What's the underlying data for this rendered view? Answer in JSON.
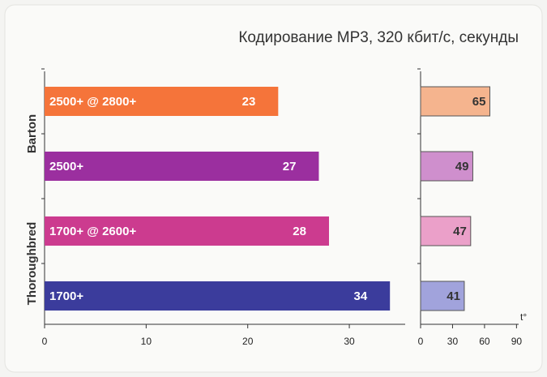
{
  "chart_data": [
    {
      "type": "bar",
      "title": "Кодирование MP3, 320 кбит/с, секунды",
      "group_labels": [
        "Barton",
        "Thoroughbred"
      ],
      "categories": [
        "2500+ @ 2800+",
        "2500+",
        "1700+ @ 2600+",
        "1700+"
      ],
      "values": [
        23,
        27,
        28,
        34
      ],
      "colors": [
        "#f5743a",
        "#9b2f9f",
        "#cc3b8f",
        "#3b3c9c"
      ],
      "xlim": [
        0,
        35.5
      ],
      "xticks": [
        0,
        10,
        20,
        30
      ]
    },
    {
      "type": "bar",
      "xlabel": "t°",
      "values": [
        65,
        49,
        47,
        41
      ],
      "colors": [
        "#f5b48e",
        "#cf8fcd",
        "#eba0c9",
        "#a1a3dc"
      ],
      "xlim": [
        0,
        92
      ],
      "xticks": [
        0,
        30,
        60,
        90
      ]
    }
  ]
}
